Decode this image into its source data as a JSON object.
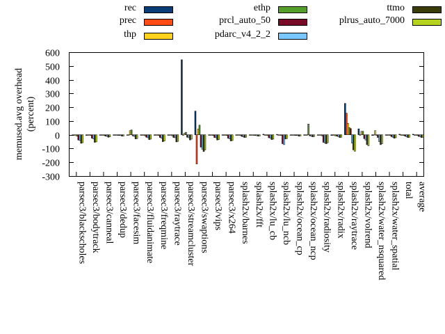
{
  "chart_data": {
    "type": "bar",
    "ylabel": "memused.avg overhead\n(percent)",
    "ylim": [
      -300,
      600
    ],
    "yticks": [
      -300,
      -200,
      -100,
      0,
      100,
      200,
      300,
      400,
      500,
      600
    ],
    "grid": false,
    "legend_position": "top",
    "categories": [
      "parsec3/blackscholes",
      "parsec3/bodytrack",
      "parsec3/canneal",
      "parsec3/dedup",
      "parsec3/facesim",
      "parsec3/fluidanimate",
      "parsec3/freqmine",
      "parsec3/raytrace",
      "parsec3/streamcluster",
      "parsec3/swaptions",
      "parsec3/vips",
      "parsec3/x264",
      "splash2x/barnes",
      "splash2x/fft",
      "splash2x/lu_cb",
      "splash2x/lu_ncb",
      "splash2x/ocean_cp",
      "splash2x/ocean_ncp",
      "splash2x/radiosity",
      "splash2x/radix",
      "splash2x/raytrace",
      "splash2x/volrend",
      "splash2x/water_nsquared",
      "splash2x/water_spatial",
      "total",
      "average"
    ],
    "series": [
      {
        "name": "rec",
        "color": "#0a3c78",
        "values": [
          -2,
          -5,
          -3,
          -2,
          -3,
          -3,
          -3,
          -3,
          545,
          172,
          -3,
          -3,
          -4,
          -3,
          4,
          3,
          -2,
          -3,
          -3,
          -5,
          228,
          43,
          -5,
          -3,
          4,
          4
        ]
      },
      {
        "name": "prec",
        "color": "#ff4a14",
        "values": [
          0,
          0,
          0,
          0,
          0,
          0,
          0,
          0,
          0,
          -212,
          0,
          0,
          0,
          0,
          0,
          0,
          0,
          0,
          0,
          0,
          157,
          0,
          0,
          0,
          0,
          0
        ]
      },
      {
        "name": "thp",
        "color": "#ffd21e",
        "values": [
          -3,
          -4,
          -4,
          -3,
          30,
          -3,
          -3,
          -3,
          12,
          42,
          -4,
          -3,
          -3,
          -3,
          -3,
          -3,
          -3,
          -3,
          -3,
          -3,
          83,
          25,
          30,
          -3,
          -3,
          -3
        ]
      },
      {
        "name": "ethp",
        "color": "#55a02a",
        "values": [
          -10,
          -5,
          -5,
          -5,
          35,
          -8,
          -6,
          -8,
          18,
          70,
          -5,
          -5,
          -5,
          -5,
          -5,
          -5,
          -5,
          78,
          -8,
          -8,
          52,
          25,
          -5,
          -5,
          -5,
          -5
        ]
      },
      {
        "name": "prcl_auto_50",
        "color": "#780a28",
        "values": [
          -38,
          -25,
          -10,
          -5,
          -8,
          -18,
          -20,
          -20,
          -18,
          -90,
          -20,
          -25,
          -12,
          -5,
          -22,
          -65,
          -5,
          -8,
          -55,
          -10,
          45,
          -28,
          -20,
          -14,
          -10,
          -12
        ]
      },
      {
        "name": "pdarc_v4_2_2",
        "color": "#78c8ff",
        "values": [
          -42,
          -30,
          -12,
          -6,
          -12,
          -22,
          -25,
          -22,
          -22,
          -105,
          -22,
          -30,
          -15,
          -7,
          -25,
          -72,
          -6,
          -10,
          -60,
          -14,
          -60,
          -38,
          -50,
          -18,
          -14,
          -14
        ]
      },
      {
        "name": "ttmo",
        "color": "#3c3c0a",
        "values": [
          -62,
          -55,
          -18,
          -10,
          -30,
          -35,
          -50,
          -52,
          -38,
          -122,
          -38,
          -45,
          -20,
          -10,
          -35,
          -30,
          -10,
          -15,
          -65,
          -20,
          -110,
          -72,
          -72,
          -25,
          -20,
          -20
        ]
      },
      {
        "name": "plrus_auto_7000",
        "color": "#b4d21e",
        "values": [
          -58,
          -52,
          -15,
          -9,
          -28,
          -32,
          -46,
          -48,
          -32,
          -110,
          -35,
          -42,
          -18,
          -9,
          -32,
          -28,
          -9,
          -13,
          -58,
          -18,
          -120,
          -80,
          -65,
          -22,
          -18,
          -18
        ]
      }
    ]
  }
}
